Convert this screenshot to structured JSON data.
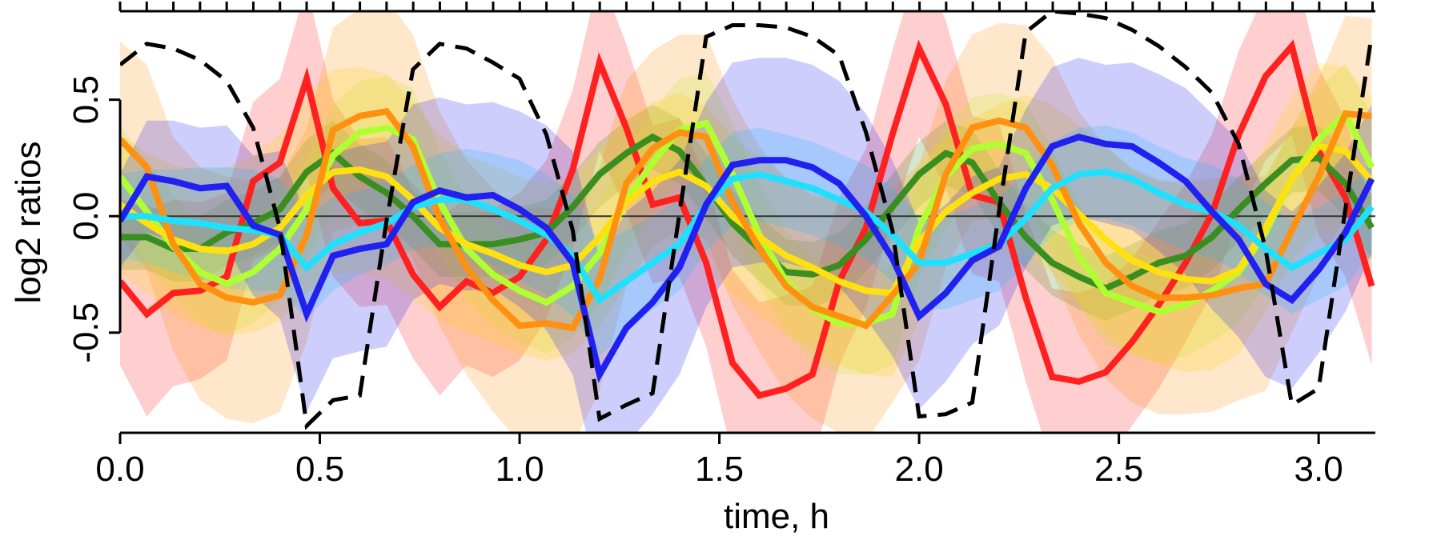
{
  "chart_data": {
    "type": "line",
    "title": "",
    "xlabel": "time, h",
    "ylabel": "log2 ratios",
    "xlim": [
      0,
      3.15
    ],
    "ylim": [
      -0.93,
      0.88
    ],
    "x_ticks": [
      "0.0",
      "0.5",
      "1.0",
      "1.5",
      "2.0",
      "2.5",
      "3.0"
    ],
    "x_tick_values": [
      0,
      0.5,
      1.0,
      1.5,
      2.0,
      2.5,
      3.0
    ],
    "y_ticks": [
      "-0.5",
      "0.0",
      "0.5"
    ],
    "y_tick_values": [
      -0.5,
      0,
      0.5
    ],
    "minor_tick_step": 0.0667,
    "grid": false,
    "reference_line": 0,
    "x": [
      0.0,
      0.067,
      0.133,
      0.2,
      0.267,
      0.333,
      0.4,
      0.467,
      0.533,
      0.6,
      0.667,
      0.733,
      0.8,
      0.867,
      0.933,
      1.0,
      1.067,
      1.133,
      1.2,
      1.267,
      1.333,
      1.4,
      1.467,
      1.533,
      1.6,
      1.667,
      1.733,
      1.8,
      1.867,
      1.933,
      2.0,
      2.067,
      2.133,
      2.2,
      2.267,
      2.333,
      2.4,
      2.467,
      2.533,
      2.6,
      2.667,
      2.733,
      2.8,
      2.867,
      2.933,
      3.0,
      3.067,
      3.133
    ],
    "series": [
      {
        "color": "#ff2020",
        "values": [
          -0.28,
          -0.42,
          -0.33,
          -0.32,
          -0.26,
          0.15,
          0.23,
          0.59,
          0.12,
          -0.03,
          -0.02,
          -0.25,
          -0.39,
          -0.28,
          -0.33,
          -0.26,
          -0.1,
          0.2,
          0.66,
          0.38,
          0.05,
          0.08,
          -0.2,
          -0.63,
          -0.77,
          -0.74,
          -0.68,
          -0.28,
          -0.05,
          0.35,
          0.72,
          0.48,
          0.09,
          0.06,
          -0.35,
          -0.69,
          -0.71,
          -0.67,
          -0.54,
          -0.38,
          -0.2,
          0.01,
          0.35,
          0.6,
          0.73,
          0.28,
          0.08,
          -0.3
        ],
        "band": [
          0.36,
          0.44,
          0.4,
          0.38,
          0.36,
          0.34,
          0.36,
          0.4,
          0.38,
          0.36,
          0.36,
          0.36,
          0.38,
          0.36,
          0.36,
          0.36,
          0.34,
          0.34,
          0.38,
          0.36,
          0.34,
          0.34,
          0.36,
          0.4,
          0.4,
          0.4,
          0.38,
          0.36,
          0.34,
          0.36,
          0.38,
          0.36,
          0.34,
          0.34,
          0.36,
          0.38,
          0.38,
          0.38,
          0.36,
          0.36,
          0.34,
          0.34,
          0.36,
          0.36,
          0.38,
          0.36,
          0.34,
          0.34
        ]
      },
      {
        "color": "#3a8e20",
        "values": [
          -0.09,
          -0.09,
          -0.14,
          -0.14,
          -0.07,
          -0.03,
          0.03,
          0.19,
          0.27,
          0.17,
          0.1,
          0.0,
          -0.12,
          -0.12,
          -0.12,
          -0.1,
          -0.07,
          0.04,
          0.18,
          0.27,
          0.34,
          0.28,
          0.13,
          -0.03,
          -0.14,
          -0.24,
          -0.25,
          -0.21,
          -0.1,
          0.04,
          0.18,
          0.27,
          0.23,
          0.06,
          -0.09,
          -0.2,
          -0.26,
          -0.31,
          -0.26,
          -0.2,
          -0.17,
          -0.09,
          0.03,
          0.14,
          0.24,
          0.25,
          0.14,
          -0.05
        ],
        "band": [
          0.14,
          0.14,
          0.14,
          0.14,
          0.14,
          0.14,
          0.14,
          0.14,
          0.14,
          0.14,
          0.14,
          0.14,
          0.14,
          0.14,
          0.14,
          0.14,
          0.14,
          0.14,
          0.14,
          0.14,
          0.14,
          0.14,
          0.14,
          0.14,
          0.14,
          0.14,
          0.14,
          0.14,
          0.14,
          0.14,
          0.14,
          0.14,
          0.14,
          0.14,
          0.14,
          0.14,
          0.14,
          0.14,
          0.14,
          0.14,
          0.14,
          0.14,
          0.14,
          0.14,
          0.14,
          0.14,
          0.14,
          0.14
        ]
      },
      {
        "color": "#b0ff30",
        "values": [
          0.17,
          0.02,
          -0.13,
          -0.24,
          -0.29,
          -0.24,
          -0.14,
          0.03,
          0.26,
          0.36,
          0.38,
          0.33,
          0.06,
          -0.14,
          -0.25,
          -0.32,
          -0.37,
          -0.3,
          -0.16,
          0.07,
          0.23,
          0.37,
          0.4,
          0.18,
          -0.08,
          -0.28,
          -0.4,
          -0.46,
          -0.46,
          -0.42,
          -0.05,
          0.17,
          0.29,
          0.31,
          0.27,
          0.07,
          -0.17,
          -0.33,
          -0.37,
          -0.41,
          -0.38,
          -0.32,
          -0.24,
          -0.07,
          0.16,
          0.33,
          0.44,
          0.21
        ],
        "band": [
          0.22,
          0.22,
          0.22,
          0.22,
          0.22,
          0.22,
          0.22,
          0.22,
          0.22,
          0.22,
          0.22,
          0.22,
          0.22,
          0.22,
          0.22,
          0.22,
          0.22,
          0.22,
          0.22,
          0.22,
          0.22,
          0.22,
          0.22,
          0.22,
          0.22,
          0.22,
          0.22,
          0.22,
          0.22,
          0.22,
          0.22,
          0.22,
          0.22,
          0.22,
          0.22,
          0.22,
          0.22,
          0.22,
          0.22,
          0.22,
          0.22,
          0.22,
          0.22,
          0.22,
          0.22,
          0.22,
          0.22,
          0.22
        ]
      },
      {
        "color": "#ffe010",
        "values": [
          0.05,
          -0.03,
          -0.1,
          -0.14,
          -0.15,
          -0.12,
          -0.05,
          0.09,
          0.19,
          0.2,
          0.17,
          0.07,
          -0.05,
          -0.12,
          -0.16,
          -0.21,
          -0.24,
          -0.21,
          -0.09,
          0.06,
          0.15,
          0.19,
          0.13,
          0.0,
          -0.09,
          -0.17,
          -0.22,
          -0.28,
          -0.32,
          -0.33,
          -0.11,
          0.02,
          0.1,
          0.16,
          0.18,
          0.12,
          0.01,
          -0.1,
          -0.19,
          -0.24,
          -0.27,
          -0.28,
          -0.23,
          -0.05,
          0.16,
          0.3,
          0.28,
          0.15
        ],
        "band": [
          0.3,
          0.3,
          0.32,
          0.34,
          0.36,
          0.38,
          0.4,
          0.42,
          0.44,
          0.44,
          0.44,
          0.42,
          0.4,
          0.38,
          0.38,
          0.38,
          0.38,
          0.38,
          0.38,
          0.36,
          0.34,
          0.34,
          0.34,
          0.34,
          0.34,
          0.34,
          0.34,
          0.36,
          0.36,
          0.36,
          0.34,
          0.32,
          0.32,
          0.32,
          0.34,
          0.36,
          0.38,
          0.4,
          0.4,
          0.4,
          0.4,
          0.38,
          0.36,
          0.36,
          0.36,
          0.36,
          0.36,
          0.36
        ]
      },
      {
        "color": "#ff9010",
        "values": [
          0.33,
          0.21,
          -0.12,
          -0.29,
          -0.35,
          -0.37,
          -0.34,
          -0.08,
          0.37,
          0.43,
          0.45,
          0.3,
          -0.01,
          -0.22,
          -0.36,
          -0.47,
          -0.46,
          -0.48,
          -0.27,
          0.14,
          0.29,
          0.36,
          0.34,
          0.06,
          -0.14,
          -0.3,
          -0.39,
          -0.43,
          -0.47,
          -0.34,
          -0.2,
          0.18,
          0.38,
          0.41,
          0.38,
          0.22,
          -0.03,
          -0.2,
          -0.3,
          -0.35,
          -0.35,
          -0.34,
          -0.31,
          -0.29,
          -0.06,
          0.17,
          0.44,
          0.43
        ],
        "band": [
          0.42,
          0.44,
          0.46,
          0.5,
          0.52,
          0.52,
          0.5,
          0.46,
          0.44,
          0.46,
          0.48,
          0.48,
          0.46,
          0.46,
          0.48,
          0.5,
          0.5,
          0.5,
          0.48,
          0.44,
          0.42,
          0.42,
          0.44,
          0.44,
          0.44,
          0.46,
          0.48,
          0.5,
          0.5,
          0.46,
          0.42,
          0.4,
          0.4,
          0.42,
          0.44,
          0.46,
          0.48,
          0.5,
          0.5,
          0.5,
          0.5,
          0.5,
          0.48,
          0.46,
          0.44,
          0.42,
          0.42,
          0.42
        ]
      },
      {
        "color": "#20e0ff",
        "values": [
          0.0,
          0.0,
          -0.02,
          -0.03,
          -0.05,
          -0.06,
          -0.08,
          -0.22,
          -0.12,
          -0.07,
          -0.03,
          0.04,
          0.07,
          0.07,
          0.03,
          -0.02,
          -0.08,
          -0.17,
          -0.36,
          -0.28,
          -0.2,
          -0.12,
          0.05,
          0.16,
          0.18,
          0.15,
          0.12,
          0.07,
          0.02,
          -0.08,
          -0.2,
          -0.2,
          -0.16,
          -0.12,
          -0.01,
          0.12,
          0.18,
          0.19,
          0.16,
          0.1,
          0.05,
          0.02,
          -0.04,
          -0.14,
          -0.22,
          -0.16,
          -0.1,
          0.04
        ],
        "band": [
          0.18,
          0.2,
          0.22,
          0.24,
          0.26,
          0.26,
          0.24,
          0.22,
          0.2,
          0.18,
          0.18,
          0.18,
          0.2,
          0.22,
          0.24,
          0.26,
          0.26,
          0.26,
          0.24,
          0.22,
          0.2,
          0.2,
          0.2,
          0.2,
          0.2,
          0.2,
          0.2,
          0.2,
          0.2,
          0.2,
          0.2,
          0.2,
          0.2,
          0.2,
          0.2,
          0.2,
          0.2,
          0.2,
          0.2,
          0.2,
          0.2,
          0.2,
          0.2,
          0.2,
          0.2,
          0.2,
          0.2,
          0.2
        ]
      },
      {
        "color": "#2020f0",
        "values": [
          -0.02,
          0.17,
          0.15,
          0.12,
          0.13,
          -0.04,
          -0.08,
          -0.42,
          -0.17,
          -0.14,
          -0.12,
          0.06,
          0.11,
          0.08,
          0.09,
          0.03,
          -0.05,
          -0.2,
          -0.68,
          -0.48,
          -0.37,
          -0.22,
          0.05,
          0.22,
          0.24,
          0.24,
          0.21,
          0.14,
          0.0,
          -0.18,
          -0.43,
          -0.33,
          -0.19,
          -0.13,
          0.12,
          0.3,
          0.34,
          0.31,
          0.3,
          0.23,
          0.15,
          0.02,
          -0.1,
          -0.29,
          -0.36,
          -0.23,
          -0.07,
          0.16
        ],
        "band": [
          0.2,
          0.24,
          0.26,
          0.26,
          0.26,
          0.3,
          0.36,
          0.42,
          0.44,
          0.44,
          0.44,
          0.42,
          0.4,
          0.4,
          0.4,
          0.42,
          0.44,
          0.48,
          0.5,
          0.5,
          0.48,
          0.46,
          0.44,
          0.44,
          0.44,
          0.44,
          0.44,
          0.44,
          0.44,
          0.42,
          0.4,
          0.38,
          0.36,
          0.34,
          0.34,
          0.34,
          0.34,
          0.34,
          0.36,
          0.38,
          0.4,
          0.42,
          0.42,
          0.4,
          0.38,
          0.36,
          0.34,
          0.32
        ]
      },
      {
        "color": "#000000",
        "dashed": true,
        "values": [
          0.65,
          0.74,
          0.72,
          0.67,
          0.58,
          0.38,
          -0.05,
          -0.9,
          -0.79,
          -0.77,
          -0.02,
          0.63,
          0.74,
          0.72,
          0.66,
          0.59,
          0.35,
          -0.06,
          -0.87,
          -0.81,
          -0.76,
          0.01,
          0.77,
          0.82,
          0.82,
          0.81,
          0.77,
          0.69,
          0.36,
          -0.06,
          -0.86,
          -0.85,
          -0.8,
          0.02,
          0.79,
          0.88,
          0.87,
          0.85,
          0.8,
          0.73,
          0.64,
          0.53,
          0.31,
          -0.14,
          -0.81,
          -0.74,
          0.03,
          0.78
        ]
      }
    ]
  }
}
